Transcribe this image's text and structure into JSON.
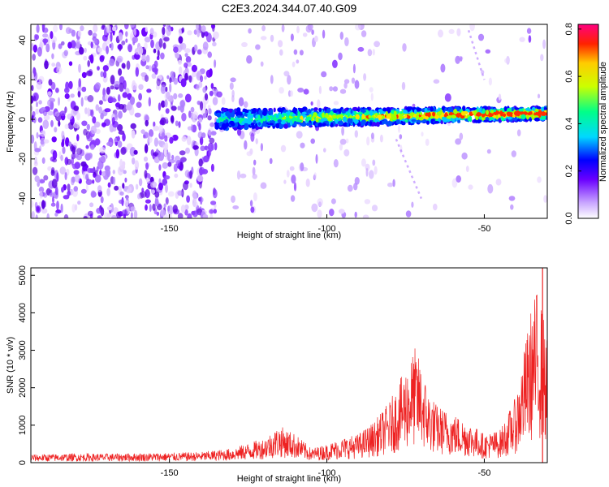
{
  "title": "C2E3.2024.344.07.40.G09",
  "colors": {
    "snr_line": "#ee2222",
    "colormap": [
      "#ffffff",
      "#7a00ff",
      "#0000ff",
      "#00e0ff",
      "#00ff66",
      "#ffff00",
      "#ff0000",
      "#ff00aa"
    ]
  },
  "chart_data": [
    {
      "type": "heatmap",
      "xlabel": "Height of straight line (km)",
      "ylabel": "Frequency (Hz)",
      "xlim": [
        -194,
        -30
      ],
      "ylim": [
        -50,
        48
      ],
      "x_ticks": [
        -150,
        -100,
        -50
      ],
      "y_ticks": [
        -40,
        -20,
        0,
        20,
        40
      ],
      "colorbar": {
        "label": "Normalized spectral amplitude",
        "range": [
          0.0,
          0.82
        ],
        "ticks": [
          0.0,
          0.2,
          0.4,
          0.6,
          0.8
        ]
      },
      "description_of_signal": {
        "noise_region_x": [
          -194,
          -135
        ],
        "tone_start_x": -135,
        "tone_center_freq_hz": 0,
        "tone_center_freq_end_hz": 3
      }
    },
    {
      "type": "line",
      "xlabel": "Height of straight line (km)",
      "ylabel": "SNR (10 * v/v)",
      "xlim": [
        -194,
        -30
      ],
      "ylim": [
        0,
        5200
      ],
      "x_ticks": [
        -150,
        -100,
        -50
      ],
      "y_ticks": [
        0,
        1000,
        2000,
        3000,
        4000,
        5000
      ],
      "series": [
        {
          "x": [
            -194,
            -180,
            -170,
            -160,
            -150,
            -140,
            -130,
            -120,
            -115,
            -110,
            -105,
            -100,
            -95,
            -90,
            -85,
            -80,
            -75,
            -72,
            -70,
            -68,
            -65,
            -60,
            -55,
            -50,
            -45,
            -40,
            -35,
            -33,
            -31,
            -30
          ],
          "y": [
            200,
            220,
            220,
            230,
            240,
            260,
            350,
            600,
            900,
            700,
            350,
            450,
            600,
            700,
            1000,
            1500,
            2300,
            2800,
            2400,
            1800,
            1400,
            1200,
            1000,
            700,
            800,
            1600,
            3800,
            4300,
            3500,
            3000
          ]
        }
      ]
    }
  ]
}
